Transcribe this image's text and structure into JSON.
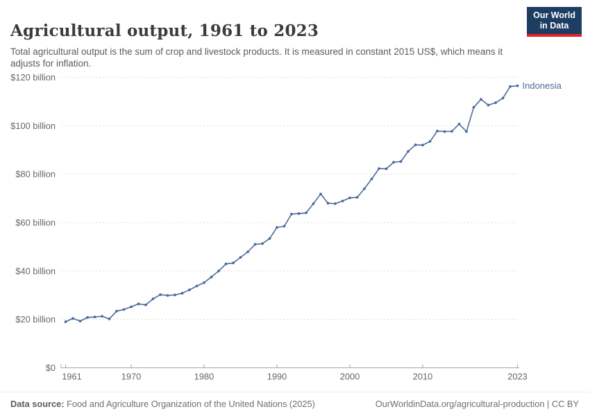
{
  "header": {
    "title": "Agricultural output, 1961 to 2023",
    "subtitle": "Total agricultural output is the sum of crop and livestock products. It is measured in constant 2015 US$, which means it adjusts for inflation.",
    "logo": {
      "line1": "Our World",
      "line2": "in Data",
      "bg_color": "#1d3d63",
      "accent_color": "#e02421"
    }
  },
  "chart_data": {
    "type": "line",
    "title": "Agricultural output, 1961 to 2023",
    "xlabel": "",
    "ylabel": "",
    "xlim": [
      1961,
      2023
    ],
    "ylim": [
      0,
      120
    ],
    "grid": "horizontal-dashed",
    "legend_position": "end-of-line-label",
    "xticks": [
      1961,
      1970,
      1980,
      1990,
      2000,
      2010,
      2023
    ],
    "yticks": [
      {
        "value": 0,
        "label": "$0"
      },
      {
        "value": 20,
        "label": "$20 billion"
      },
      {
        "value": 40,
        "label": "$40 billion"
      },
      {
        "value": 60,
        "label": "$60 billion"
      },
      {
        "value": 80,
        "label": "$80 billion"
      },
      {
        "value": 100,
        "label": "$100 billion"
      },
      {
        "value": 120,
        "label": "$120 billion"
      }
    ],
    "series": [
      {
        "name": "Indonesia",
        "color": "#4c6a9c",
        "x": [
          1961,
          1962,
          1963,
          1964,
          1965,
          1966,
          1967,
          1968,
          1969,
          1970,
          1971,
          1972,
          1973,
          1974,
          1975,
          1976,
          1977,
          1978,
          1979,
          1980,
          1981,
          1982,
          1983,
          1984,
          1985,
          1986,
          1987,
          1988,
          1989,
          1990,
          1991,
          1992,
          1993,
          1994,
          1995,
          1996,
          1997,
          1998,
          1999,
          2000,
          2001,
          2002,
          2003,
          2004,
          2005,
          2006,
          2007,
          2008,
          2009,
          2010,
          2011,
          2012,
          2013,
          2014,
          2015,
          2016,
          2017,
          2018,
          2019,
          2020,
          2021,
          2022,
          2023
        ],
        "values": [
          19.0,
          20.4,
          19.3,
          20.8,
          21.0,
          21.3,
          20.2,
          23.4,
          24.1,
          25.2,
          26.4,
          26.0,
          28.5,
          30.2,
          29.9,
          30.1,
          30.8,
          32.2,
          33.8,
          35.2,
          37.5,
          40.0,
          42.9,
          43.3,
          45.6,
          47.9,
          51.0,
          51.3,
          53.4,
          58.0,
          58.5,
          63.5,
          63.7,
          64.0,
          67.8,
          71.8,
          68.0,
          67.8,
          68.9,
          70.2,
          70.4,
          74.0,
          78.0,
          82.3,
          82.2,
          84.9,
          85.2,
          89.4,
          92.1,
          92.0,
          93.5,
          97.8,
          97.6,
          97.7,
          100.7,
          97.6,
          107.6,
          110.9,
          108.5,
          109.5,
          111.4,
          116.2,
          116.5
        ]
      }
    ]
  },
  "footer": {
    "datasource_prefix": "Data source:",
    "datasource_text": " Food and Agriculture Organization of the United Nations (2025)",
    "rights_text": "OurWorldinData.org/agricultural-production | CC BY"
  }
}
